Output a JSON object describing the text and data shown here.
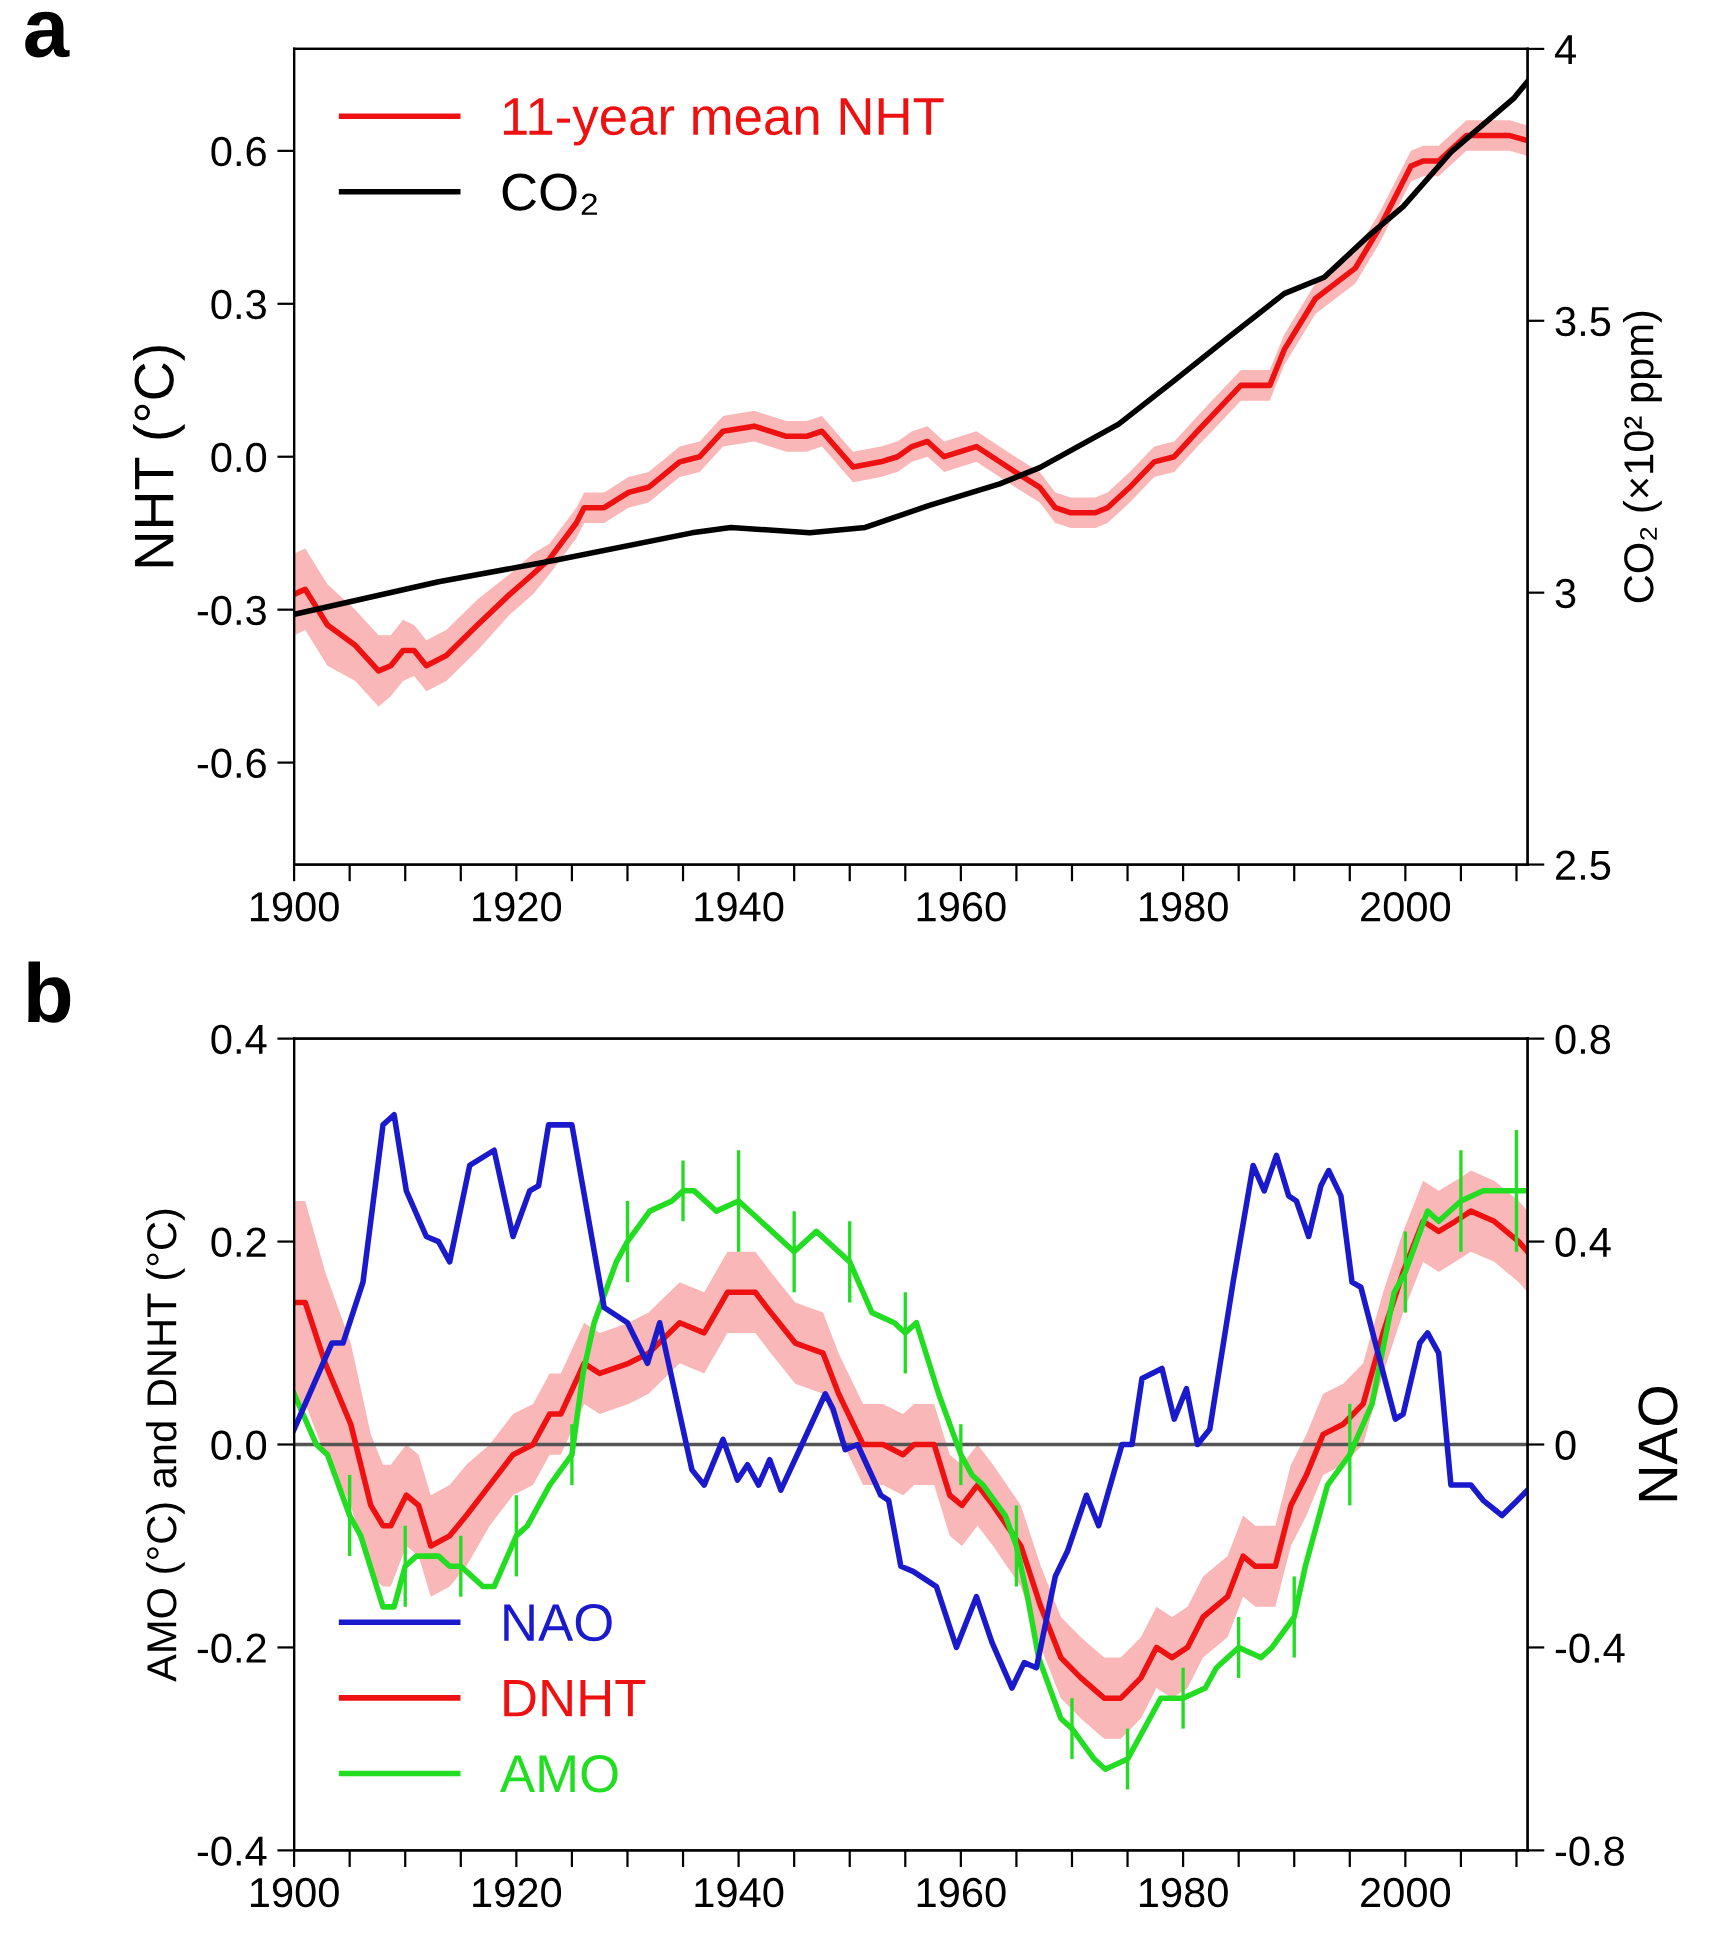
{
  "chart_data": [
    {
      "type": "line",
      "title": "a",
      "ylabel": "NHT (°C)",
      "y2label": "CO₂ (×10² ppm)",
      "legend": "top left",
      "grid": false,
      "marker": "none",
      "line_style": "solid",
      "xlim": [
        1900,
        2011
      ],
      "xticks": [
        1900,
        {
          "value": 1905,
          "label": null
        },
        {
          "value": 1910,
          "label": null
        },
        {
          "value": 1915,
          "label": null
        },
        1920,
        {
          "value": 1925,
          "label": null
        },
        {
          "value": 1930,
          "label": null
        },
        {
          "value": 1935,
          "label": null
        },
        1940,
        {
          "value": 1945,
          "label": null
        },
        {
          "value": 1950,
          "label": null
        },
        {
          "value": 1955,
          "label": null
        },
        1960,
        {
          "value": 1965,
          "label": null
        },
        {
          "value": 1970,
          "label": null
        },
        {
          "value": 1975,
          "label": null
        },
        1980,
        {
          "value": 1985,
          "label": null
        },
        {
          "value": 1990,
          "label": null
        },
        {
          "value": 1995,
          "label": null
        },
        2000,
        {
          "value": 2005,
          "label": null
        },
        {
          "value": 2010,
          "label": null
        }
      ],
      "ylim": [
        -0.8,
        0.8
      ],
      "yticks": [
        {
          "value": -0.6,
          "label": "-0.6"
        },
        {
          "value": -0.3,
          "label": "-0.3"
        },
        {
          "value": 0,
          "label": "0.0"
        },
        {
          "value": 0.3,
          "label": "0.3"
        },
        {
          "value": 0.6,
          "label": "0.6"
        }
      ],
      "y2lim": [
        2.5,
        4
      ],
      "y2ticks": [
        2.5,
        3,
        3.5,
        4
      ],
      "series": [
        {
          "name": "11-year mean NHT",
          "color": "#ee1111",
          "type": "line",
          "x": [
            1900,
            1901,
            1903,
            1905.5,
            1907.6,
            1908.7,
            1909.8,
            1910.8,
            1911.9,
            1913.7,
            1916.5,
            1919.4,
            1921.5,
            1923,
            1925.4,
            1926.1,
            1927.9,
            1930.1,
            1931.9,
            1934.7,
            1936.5,
            1938.6,
            1941.4,
            1944.3,
            1946.1,
            1947.5,
            1950.3,
            1952.8,
            1954.3,
            1955.6,
            1957,
            1958.5,
            1961.4,
            1964.9,
            1967.1,
            1968.5,
            1969.9,
            1972.1,
            1973.2,
            1975.2,
            1977.4,
            1979.2,
            1981.3,
            1985.2,
            1987.8,
            1989.1,
            1991.9,
            1995.5,
            1997.7,
            2000.5,
            2001.6,
            2003,
            2005.5,
            2007.6,
            2009.4,
            2011
          ],
          "values": [
            -0.27,
            -0.26,
            -0.33,
            -0.37,
            -0.42,
            -0.41,
            -0.38,
            -0.38,
            -0.41,
            -0.39,
            -0.33,
            -0.27,
            -0.23,
            -0.2,
            -0.13,
            -0.1,
            -0.1,
            -0.07,
            -0.06,
            -0.01,
            0.0,
            0.05,
            0.06,
            0.04,
            0.04,
            0.05,
            -0.02,
            -0.01,
            0.0,
            0.02,
            0.03,
            0.0,
            0.02,
            -0.03,
            -0.06,
            -0.1,
            -0.11,
            -0.11,
            -0.1,
            -0.06,
            -0.01,
            0.0,
            0.05,
            0.14,
            0.14,
            0.21,
            0.31,
            0.37,
            0.45,
            0.57,
            0.58,
            0.58,
            0.63,
            0.63,
            0.63,
            0.62
          ],
          "lower": [
            -0.35,
            -0.34,
            -0.41,
            -0.44,
            -0.49,
            -0.47,
            -0.44,
            -0.43,
            -0.46,
            -0.44,
            -0.38,
            -0.31,
            -0.27,
            -0.23,
            -0.16,
            -0.13,
            -0.13,
            -0.1,
            -0.09,
            -0.04,
            -0.03,
            0.02,
            0.03,
            0.01,
            0.01,
            0.02,
            -0.05,
            -0.04,
            -0.03,
            -0.01,
            0.0,
            -0.03,
            -0.01,
            -0.06,
            -0.09,
            -0.13,
            -0.14,
            -0.14,
            -0.13,
            -0.09,
            -0.04,
            -0.03,
            0.02,
            0.11,
            0.11,
            0.18,
            0.28,
            0.34,
            0.42,
            0.54,
            0.55,
            0.55,
            0.6,
            0.6,
            0.6,
            0.59
          ],
          "upper": [
            -0.19,
            -0.18,
            -0.25,
            -0.3,
            -0.35,
            -0.35,
            -0.32,
            -0.33,
            -0.36,
            -0.34,
            -0.28,
            -0.23,
            -0.19,
            -0.17,
            -0.1,
            -0.07,
            -0.07,
            -0.04,
            -0.03,
            0.02,
            0.03,
            0.08,
            0.09,
            0.07,
            0.07,
            0.08,
            0.01,
            0.02,
            0.03,
            0.05,
            0.06,
            0.03,
            0.05,
            0.0,
            -0.03,
            -0.07,
            -0.08,
            -0.08,
            -0.07,
            -0.03,
            0.02,
            0.03,
            0.08,
            0.17,
            0.17,
            0.24,
            0.34,
            0.4,
            0.48,
            0.6,
            0.61,
            0.61,
            0.66,
            0.66,
            0.66,
            0.65
          ]
        },
        {
          "name": "CO₂",
          "color": "#000000",
          "type": "line",
          "axis": "y2",
          "x": [
            1900,
            1913,
            1923.6,
            1935.8,
            1939.3,
            1946.4,
            1951.4,
            1957.1,
            1963.5,
            1967.1,
            1974.2,
            1979.2,
            1984.1,
            1989.1,
            1992.7,
            1996.9,
            1999.8,
            2004.1,
            2009.8,
            2011
          ],
          "values": [
            2.96,
            3.02,
            3.06,
            3.11,
            3.12,
            3.11,
            3.12,
            3.16,
            3.2,
            3.23,
            3.31,
            3.39,
            3.47,
            3.55,
            3.58,
            3.66,
            3.71,
            3.81,
            3.91,
            3.94
          ]
        }
      ]
    },
    {
      "type": "line",
      "title": "b",
      "ylabel": "AMO (°C) and DNHT (°C)",
      "y2label": "NAO",
      "legend": "bottom left",
      "grid": false,
      "marker": "none",
      "line_style": "solid",
      "xlim": [
        1900,
        2011
      ],
      "xticks": [
        1900,
        {
          "value": 1905,
          "label": null
        },
        {
          "value": 1910,
          "label": null
        },
        {
          "value": 1915,
          "label": null
        },
        1920,
        {
          "value": 1925,
          "label": null
        },
        {
          "value": 1930,
          "label": null
        },
        {
          "value": 1935,
          "label": null
        },
        1940,
        {
          "value": 1945,
          "label": null
        },
        {
          "value": 1950,
          "label": null
        },
        {
          "value": 1955,
          "label": null
        },
        1960,
        {
          "value": 1965,
          "label": null
        },
        {
          "value": 1970,
          "label": null
        },
        {
          "value": 1975,
          "label": null
        },
        1980,
        {
          "value": 1985,
          "label": null
        },
        {
          "value": 1990,
          "label": null
        },
        {
          "value": 1995,
          "label": null
        },
        2000,
        {
          "value": 2005,
          "label": null
        },
        {
          "value": 2010,
          "label": null
        }
      ],
      "ylim": [
        -0.4,
        0.4
      ],
      "yticks": [
        {
          "value": -0.4,
          "label": "-0.4"
        },
        {
          "value": -0.2,
          "label": "-0.2"
        },
        {
          "value": 0,
          "label": "0.0"
        },
        {
          "value": 0.2,
          "label": "0.2"
        },
        {
          "value": 0.4,
          "label": "0.4"
        }
      ],
      "y2lim": [
        -0.8,
        0.8
      ],
      "y2ticks": [
        {
          "value": -0.8,
          "label": "-0.8"
        },
        {
          "value": -0.4,
          "label": "-0.4"
        },
        0,
        0.4,
        0.8
      ],
      "ref_lines": [
        {
          "axis": "y",
          "value": 0,
          "color": "#555555"
        }
      ],
      "series": [
        {
          "name": "NAO",
          "color": "#1a1acc",
          "type": "line",
          "axis": "y2",
          "x": [
            1900,
            1903.4,
            1904.4,
            1906.2,
            1908,
            1909,
            1910.1,
            1911.9,
            1913,
            1914,
            1915.8,
            1918,
            1919.7,
            1921.2,
            1922,
            1922.9,
            1925,
            1927.9,
            1930,
            1931.8,
            1932.9,
            1935.8,
            1936.9,
            1938.6,
            1939.9,
            1940.8,
            1941.8,
            1942.8,
            1943.8,
            1945.7,
            1947.8,
            1948.5,
            1949.6,
            1950.7,
            1952.8,
            1953.5,
            1954.6,
            1955.7,
            1957.8,
            1959.6,
            1961.4,
            1962.8,
            1964.6,
            1965.7,
            1966.8,
            1968.5,
            1969.6,
            1971.3,
            1972.4,
            1974.5,
            1975.4,
            1976.3,
            1978.1,
            1979.2,
            1980.3,
            1981.3,
            1982.4,
            1984.5,
            1986.3,
            1987.3,
            1988.4,
            1989.5,
            1990.2,
            1991.3,
            1992.4,
            1993.1,
            1994.2,
            1995.2,
            1996,
            1997.3,
            1999.1,
            1999.8,
            2001.3,
            2002,
            2003,
            2004.1,
            2005.9,
            2007,
            2008.7,
            2010.1,
            2011
          ],
          "values": [
            0.03,
            0.2,
            0.2,
            0.32,
            0.63,
            0.65,
            0.5,
            0.41,
            0.4,
            0.36,
            0.55,
            0.58,
            0.41,
            0.5,
            0.51,
            0.63,
            0.63,
            0.27,
            0.24,
            0.16,
            0.24,
            -0.05,
            -0.08,
            0.01,
            -0.07,
            -0.04,
            -0.08,
            -0.03,
            -0.09,
            0.0,
            0.1,
            0.07,
            -0.01,
            0.0,
            -0.1,
            -0.11,
            -0.24,
            -0.25,
            -0.28,
            -0.4,
            -0.3,
            -0.39,
            -0.48,
            -0.43,
            -0.44,
            -0.26,
            -0.21,
            -0.1,
            -0.16,
            0.0,
            0.0,
            0.13,
            0.15,
            0.05,
            0.11,
            0.0,
            0.03,
            0.32,
            0.55,
            0.5,
            0.57,
            0.49,
            0.48,
            0.41,
            0.51,
            0.54,
            0.49,
            0.32,
            0.31,
            0.2,
            0.05,
            0.06,
            0.2,
            0.22,
            0.18,
            -0.08,
            -0.08,
            -0.11,
            -0.14,
            -0.11,
            -0.09
          ]
        },
        {
          "name": "DNHT",
          "color": "#ee1111",
          "type": "line",
          "x": [
            1900,
            1901,
            1902.8,
            1905.1,
            1906.9,
            1908,
            1908.7,
            1910.1,
            1911.2,
            1912.3,
            1914,
            1915.5,
            1917.6,
            1919.7,
            1921.5,
            1923,
            1924,
            1926.1,
            1927.5,
            1930.1,
            1931.9,
            1934.7,
            1936.9,
            1939,
            1941.5,
            1942.9,
            1945.1,
            1947.6,
            1949,
            1951.2,
            1953,
            1954.8,
            1955.8,
            1957.6,
            1959,
            1960.1,
            1961.5,
            1962.9,
            1965.4,
            1967.2,
            1969,
            1970.8,
            1972.9,
            1974.4,
            1976.2,
            1977.6,
            1979,
            1980.4,
            1981.8,
            1984,
            1985.4,
            1986.5,
            1988.3,
            1989.7,
            1991.1,
            1992.6,
            1994.4,
            1996.2,
            1998,
            1999.8,
            2001.6,
            2003,
            2004.5,
            2005.9,
            2008,
            2010.2,
            2011
          ],
          "values": [
            0.14,
            0.14,
            0.08,
            0.02,
            -0.06,
            -0.08,
            -0.08,
            -0.05,
            -0.06,
            -0.1,
            -0.09,
            -0.07,
            -0.04,
            -0.01,
            0.0,
            0.03,
            0.03,
            0.08,
            0.07,
            0.08,
            0.09,
            0.12,
            0.11,
            0.15,
            0.15,
            0.13,
            0.1,
            0.09,
            0.05,
            0.0,
            0.0,
            -0.01,
            0.0,
            0.0,
            -0.05,
            -0.06,
            -0.04,
            -0.06,
            -0.1,
            -0.16,
            -0.21,
            -0.23,
            -0.25,
            -0.25,
            -0.23,
            -0.2,
            -0.21,
            -0.2,
            -0.17,
            -0.15,
            -0.11,
            -0.12,
            -0.12,
            -0.06,
            -0.03,
            0.01,
            0.02,
            0.04,
            0.11,
            0.17,
            0.22,
            0.21,
            0.22,
            0.23,
            0.22,
            0.2,
            0.19
          ],
          "lower": [
            0.04,
            0.04,
            -0.01,
            -0.06,
            -0.13,
            -0.14,
            -0.14,
            -0.1,
            -0.11,
            -0.15,
            -0.14,
            -0.12,
            -0.08,
            -0.05,
            -0.04,
            -0.01,
            -0.01,
            0.04,
            0.03,
            0.04,
            0.05,
            0.08,
            0.07,
            0.11,
            0.11,
            0.09,
            0.06,
            0.05,
            0.01,
            -0.04,
            -0.04,
            -0.05,
            -0.04,
            -0.04,
            -0.09,
            -0.1,
            -0.08,
            -0.1,
            -0.14,
            -0.2,
            -0.25,
            -0.27,
            -0.29,
            -0.29,
            -0.27,
            -0.24,
            -0.25,
            -0.24,
            -0.21,
            -0.19,
            -0.15,
            -0.16,
            -0.16,
            -0.1,
            -0.07,
            -0.03,
            -0.02,
            0.0,
            0.07,
            0.13,
            0.18,
            0.17,
            0.18,
            0.19,
            0.18,
            0.16,
            0.15
          ],
          "upper": [
            0.24,
            0.24,
            0.17,
            0.1,
            0.01,
            -0.02,
            -0.02,
            0.0,
            -0.01,
            -0.05,
            -0.04,
            -0.02,
            0.0,
            0.03,
            0.04,
            0.07,
            0.07,
            0.12,
            0.11,
            0.12,
            0.13,
            0.16,
            0.15,
            0.19,
            0.19,
            0.17,
            0.14,
            0.13,
            0.09,
            0.04,
            0.04,
            0.03,
            0.04,
            0.04,
            -0.01,
            -0.02,
            0.0,
            -0.02,
            -0.06,
            -0.12,
            -0.17,
            -0.19,
            -0.21,
            -0.21,
            -0.19,
            -0.16,
            -0.17,
            -0.16,
            -0.13,
            -0.11,
            -0.07,
            -0.08,
            -0.08,
            -0.02,
            0.01,
            0.05,
            0.06,
            0.08,
            0.15,
            0.21,
            0.26,
            0.25,
            0.26,
            0.27,
            0.26,
            0.24,
            0.23
          ]
        },
        {
          "name": "AMO",
          "color": "#22dd22",
          "type": "line",
          "x": [
            1900,
            1902,
            1903,
            1905,
            1906,
            1908,
            1909,
            1910,
            1911,
            1912,
            1913,
            1914,
            1915,
            1916,
            1917,
            1918,
            1920,
            1921,
            1923,
            1925,
            1926,
            1927,
            1929,
            1930,
            1932,
            1934,
            1935,
            1936,
            1938,
            1940,
            1942,
            1943,
            1945,
            1947,
            1950,
            1952,
            1954,
            1955,
            1956,
            1958,
            1960,
            1961,
            1962,
            1964,
            1965,
            1966,
            1967,
            1969,
            1970,
            1972,
            1973,
            1975,
            1977,
            1978,
            1980,
            1982,
            1983,
            1985,
            1987,
            1988,
            1990,
            1991,
            1993,
            1995,
            1997,
            1999,
            2000,
            2002,
            2003,
            2005,
            2007,
            2008,
            2010,
            2011
          ],
          "values": [
            0.05,
            0.0,
            -0.01,
            -0.07,
            -0.09,
            -0.16,
            -0.16,
            -0.12,
            -0.11,
            -0.11,
            -0.11,
            -0.12,
            -0.12,
            -0.13,
            -0.14,
            -0.14,
            -0.09,
            -0.08,
            -0.04,
            -0.01,
            0.07,
            0.12,
            0.18,
            0.2,
            0.23,
            0.24,
            0.25,
            0.25,
            0.23,
            0.24,
            0.22,
            0.21,
            0.19,
            0.21,
            0.18,
            0.13,
            0.12,
            0.11,
            0.12,
            0.05,
            -0.01,
            -0.03,
            -0.04,
            -0.07,
            -0.1,
            -0.15,
            -0.21,
            -0.27,
            -0.28,
            -0.31,
            -0.32,
            -0.31,
            -0.27,
            -0.25,
            -0.25,
            -0.24,
            -0.22,
            -0.2,
            -0.21,
            -0.2,
            -0.17,
            -0.12,
            -0.04,
            -0.01,
            0.04,
            0.15,
            0.17,
            0.23,
            0.22,
            0.24,
            0.25,
            0.25,
            0.25,
            0.25
          ],
          "errors": [
            null,
            null,
            null,
            0.04,
            null,
            null,
            null,
            0.04,
            null,
            null,
            null,
            null,
            0.03,
            null,
            null,
            null,
            0.04,
            null,
            null,
            0.03,
            null,
            null,
            null,
            0.04,
            null,
            null,
            0.03,
            null,
            null,
            0.05,
            null,
            null,
            0.04,
            null,
            0.04,
            null,
            null,
            0.04,
            null,
            null,
            0.03,
            null,
            null,
            null,
            0.04,
            null,
            null,
            null,
            0.03,
            null,
            null,
            0.03,
            null,
            null,
            0.03,
            null,
            null,
            0.03,
            null,
            null,
            0.04,
            null,
            null,
            0.05,
            null,
            null,
            0.04,
            null,
            null,
            0.05,
            null,
            null,
            0.06,
            null
          ]
        }
      ]
    }
  ]
}
